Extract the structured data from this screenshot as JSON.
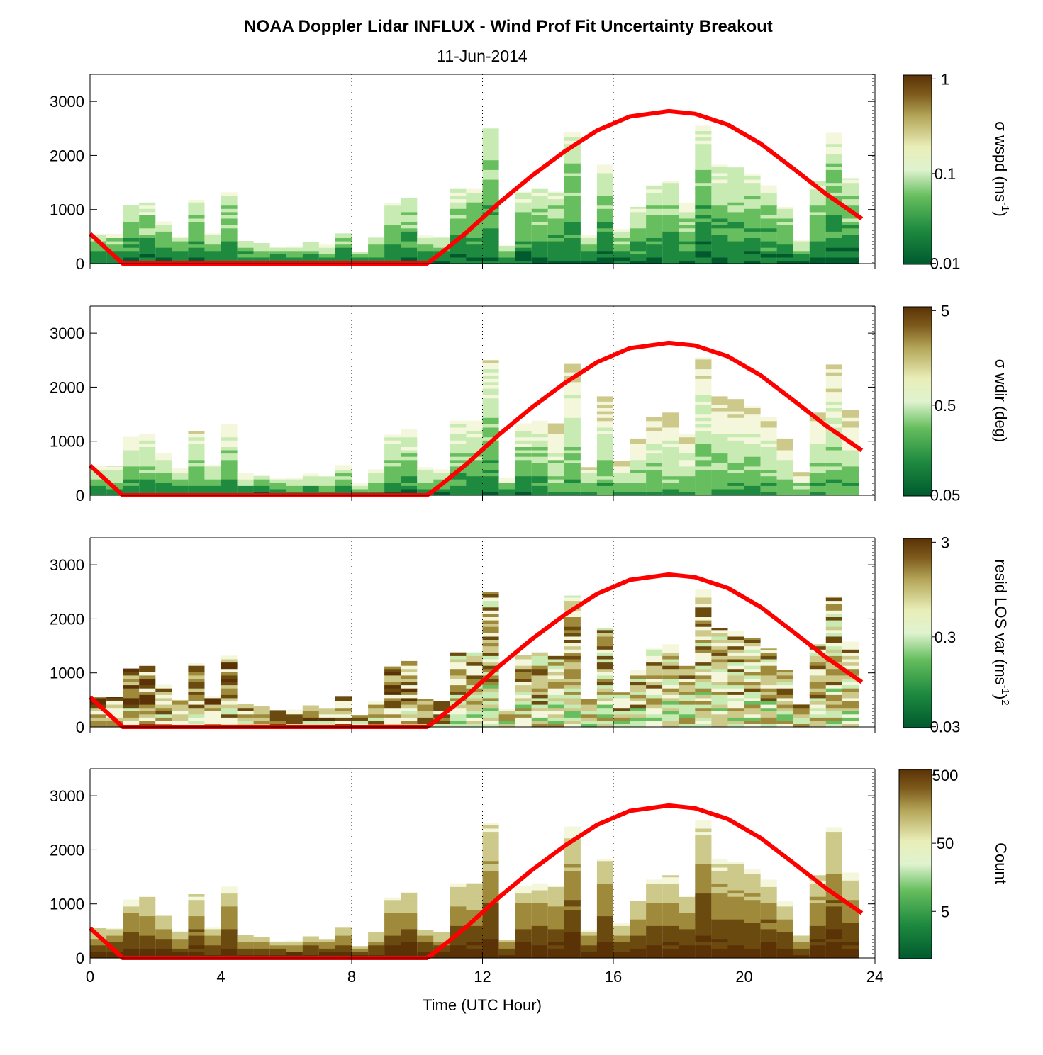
{
  "chart_data": {
    "type": "heatmap",
    "title": "NOAA Doppler Lidar INFLUX - Wind Prof Fit Uncertainty Breakout",
    "subtitle": "11-Jun-2014",
    "xlabel": "Time (UTC Hour)",
    "xlim": [
      0,
      24
    ],
    "xticks": [
      "0",
      "4",
      "8",
      "12",
      "16",
      "20",
      "24"
    ],
    "ylim": [
      0,
      3500
    ],
    "yticks": [
      "0",
      "1000",
      "2000",
      "3000"
    ],
    "grid": "dotted vertical lines at 4-hour intervals",
    "colormap": [
      "#005a2e",
      "#1e8a3f",
      "#66be5e",
      "#c8ebb3",
      "#f4f7dc",
      "#cdc98a",
      "#9e8a3a",
      "#6b4a10",
      "#5a3206"
    ],
    "line_color": "#ff0000",
    "profiles": {
      "hours": [
        0.25,
        0.75,
        1.25,
        1.75,
        2.25,
        2.75,
        3.25,
        3.75,
        4.25,
        4.75,
        5.25,
        5.75,
        6.25,
        6.75,
        7.25,
        7.75,
        8.25,
        8.75,
        9.25,
        9.75,
        10.25,
        10.75,
        11.25,
        11.75,
        12.25,
        12.75,
        13.25,
        13.75,
        14.25,
        14.75,
        15.25,
        15.75,
        16.25,
        16.75,
        17.25,
        17.75,
        18.25,
        18.75,
        19.25,
        19.75,
        20.25,
        20.75,
        21.25,
        21.75,
        22.25,
        22.75,
        23.25
      ],
      "top_m": [
        550,
        550,
        1080,
        1130,
        780,
        500,
        1180,
        560,
        1320,
        420,
        380,
        310,
        320,
        400,
        350,
        560,
        220,
        480,
        1120,
        1220,
        520,
        480,
        1380,
        1380,
        2500,
        330,
        1330,
        1380,
        1330,
        2430,
        520,
        1830,
        640,
        1050,
        1450,
        1530,
        1130,
        2550,
        1830,
        1780,
        1650,
        1450,
        1050,
        430,
        1530,
        2420,
        1580
      ]
    },
    "series": [
      {
        "name": "sunrise-sunset curve",
        "x": [
          0.0,
          1.0,
          9.0,
          10.3,
          10.6,
          11.5,
          12.5,
          13.5,
          14.5,
          15.5,
          16.5,
          17.7,
          18.5,
          19.5,
          20.5,
          21.5,
          22.5,
          23.6
        ],
        "y": [
          550,
          0,
          0,
          0,
          130,
          570,
          1120,
          1620,
          2070,
          2460,
          2720,
          2820,
          2770,
          2570,
          2220,
          1760,
          1290,
          830
        ]
      }
    ],
    "panels": [
      {
        "cbar_label": "σ wspd (ms",
        "cbar_sup": "-1",
        "cbar_suffix": ")",
        "cbar_ticks": [
          "1",
          "0.1",
          "0.01"
        ],
        "scale": "log"
      },
      {
        "cbar_label": "σ wdir (deg)",
        "cbar_sup": "",
        "cbar_suffix": "",
        "cbar_ticks": [
          "5",
          "0.5",
          "0.05"
        ],
        "scale": "log"
      },
      {
        "cbar_label": "resid LOS var (ms",
        "cbar_sup": "-1",
        "cbar_suffix": ")",
        "cbar_sup2": "2",
        "cbar_ticks": [
          "3",
          "0.3",
          "0.03"
        ],
        "scale": "log"
      },
      {
        "cbar_label": "Count",
        "cbar_sup": "",
        "cbar_suffix": "",
        "cbar_ticks": [
          "500",
          "50",
          "5"
        ],
        "scale": "log"
      }
    ]
  }
}
